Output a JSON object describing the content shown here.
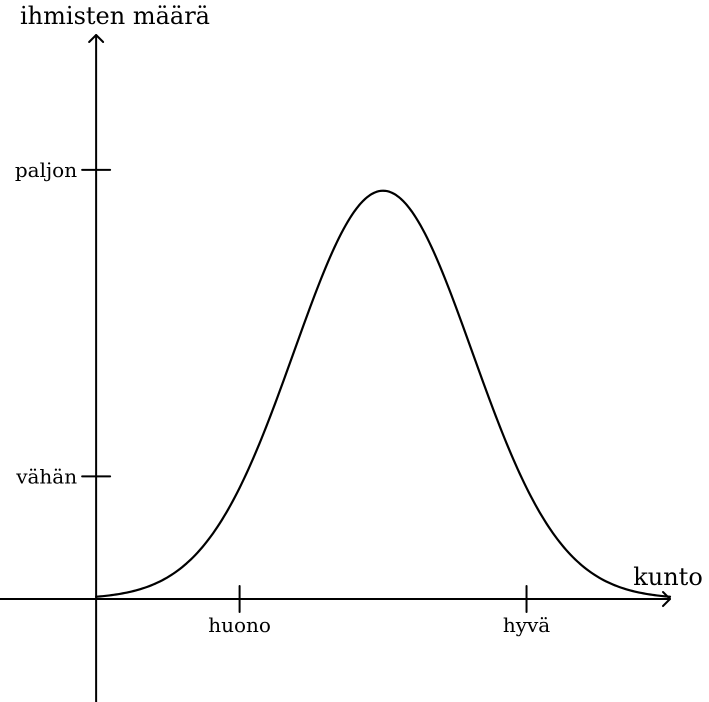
{
  "chart_data": {
    "type": "line",
    "title": "",
    "xlabel": "kunto",
    "ylabel": "ihmisten määrä",
    "x_ticks": [
      {
        "label": "huono",
        "value": 1
      },
      {
        "label": "hyvä",
        "value": 3
      }
    ],
    "y_ticks": [
      {
        "label": "vähän",
        "value": 1
      },
      {
        "label": "paljon",
        "value": 3.5
      }
    ],
    "xlim": [
      -0.67,
      4
    ],
    "ylim": [
      -0.84,
      4.6
    ],
    "series": [
      {
        "distribution": "normal",
        "mean": 2,
        "stddev": 0.62,
        "peak": 3.33
      }
    ],
    "colors": {
      "line": "#000000"
    },
    "grid": false,
    "legend": "none"
  }
}
